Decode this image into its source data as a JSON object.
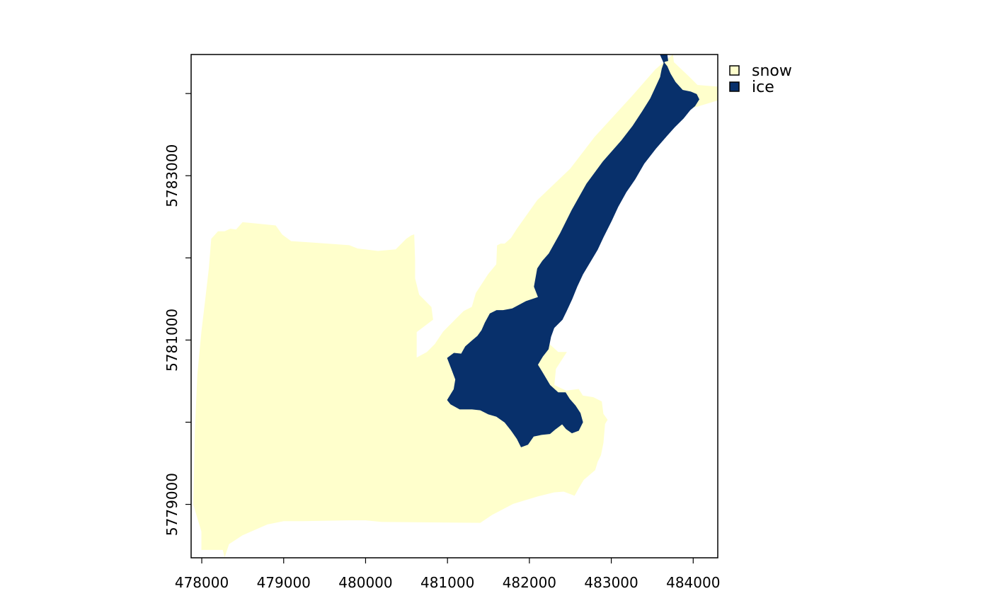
{
  "chart_data": {
    "type": "raster_map",
    "title": "",
    "xlabel": "",
    "ylabel": "",
    "x_ticks": [
      {
        "value": 478000,
        "label": "478000"
      },
      {
        "value": 479000,
        "label": "479000"
      },
      {
        "value": 480000,
        "label": "480000"
      },
      {
        "value": 481000,
        "label": "481000"
      },
      {
        "value": 482000,
        "label": "482000"
      },
      {
        "value": 483000,
        "label": "483000"
      },
      {
        "value": 484000,
        "label": "484000"
      }
    ],
    "y_ticks": [
      {
        "value": 5779000,
        "label": "5779000"
      },
      {
        "value": 5780000,
        "label": ""
      },
      {
        "value": 5781000,
        "label": "5781000"
      },
      {
        "value": 5782000,
        "label": ""
      },
      {
        "value": 5783000,
        "label": "5783000"
      },
      {
        "value": 5784000,
        "label": ""
      }
    ],
    "xlim": [
      477870,
      484300
    ],
    "ylim": [
      5778350,
      5784475
    ],
    "legend": {
      "position": "top-right",
      "entries": [
        {
          "label": "snow",
          "color": "#ffffcc"
        },
        {
          "label": "ice",
          "color": "#08306b"
        }
      ]
    },
    "classes": [
      {
        "name": "snow",
        "color": "#ffffcc",
        "polygon": [
          [
            478000,
            5778670
          ],
          [
            478000,
            5778450
          ],
          [
            478260,
            5778450
          ],
          [
            478280,
            5778370
          ],
          [
            478330,
            5778520
          ],
          [
            478500,
            5778630
          ],
          [
            478800,
            5778760
          ],
          [
            479000,
            5778800
          ],
          [
            479230,
            5778800
          ],
          [
            479800,
            5778810
          ],
          [
            480000,
            5778810
          ],
          [
            480200,
            5778790
          ],
          [
            481400,
            5778780
          ],
          [
            481550,
            5778880
          ],
          [
            481800,
            5779010
          ],
          [
            482100,
            5779100
          ],
          [
            482300,
            5779150
          ],
          [
            482420,
            5779160
          ],
          [
            482550,
            5779110
          ],
          [
            482600,
            5779200
          ],
          [
            482660,
            5779300
          ],
          [
            482800,
            5779420
          ],
          [
            482830,
            5779520
          ],
          [
            482870,
            5779600
          ],
          [
            482900,
            5779750
          ],
          [
            482920,
            5779980
          ],
          [
            482950,
            5780030
          ],
          [
            482900,
            5780100
          ],
          [
            482880,
            5780250
          ],
          [
            482780,
            5780300
          ],
          [
            482650,
            5780320
          ],
          [
            482600,
            5780400
          ],
          [
            482450,
            5780380
          ],
          [
            482300,
            5780450
          ],
          [
            482320,
            5780650
          ],
          [
            482450,
            5780850
          ],
          [
            482350,
            5780850
          ],
          [
            482130,
            5781050
          ],
          [
            482230,
            5781250
          ],
          [
            482300,
            5781350
          ],
          [
            482430,
            5781550
          ],
          [
            482590,
            5781800
          ],
          [
            482650,
            5781910
          ],
          [
            482700,
            5782060
          ],
          [
            482870,
            5782440
          ],
          [
            483000,
            5782720
          ],
          [
            483130,
            5782980
          ],
          [
            483300,
            5783270
          ],
          [
            483520,
            5783600
          ],
          [
            483800,
            5783700
          ],
          [
            484000,
            5783830
          ],
          [
            484300,
            5783920
          ],
          [
            484300,
            5784080
          ],
          [
            484050,
            5784100
          ],
          [
            483950,
            5784200
          ],
          [
            483760,
            5784380
          ],
          [
            483750,
            5784470
          ],
          [
            483540,
            5784290
          ],
          [
            483250,
            5783960
          ],
          [
            482800,
            5783470
          ],
          [
            482500,
            5783080
          ],
          [
            482100,
            5782700
          ],
          [
            481850,
            5782350
          ],
          [
            481780,
            5782240
          ],
          [
            481700,
            5782170
          ],
          [
            481650,
            5782170
          ],
          [
            481610,
            5782150
          ],
          [
            481600,
            5781920
          ],
          [
            481500,
            5781800
          ],
          [
            481350,
            5781570
          ],
          [
            481300,
            5781400
          ],
          [
            481200,
            5781350
          ],
          [
            481100,
            5781250
          ],
          [
            480950,
            5781100
          ],
          [
            480850,
            5780950
          ],
          [
            480750,
            5780850
          ],
          [
            480620,
            5780780
          ],
          [
            480620,
            5781100
          ],
          [
            480820,
            5781250
          ],
          [
            480800,
            5781400
          ],
          [
            480650,
            5781550
          ],
          [
            480600,
            5781750
          ],
          [
            480600,
            5781980
          ],
          [
            480590,
            5782280
          ],
          [
            480560,
            5782270
          ],
          [
            480500,
            5782230
          ],
          [
            480370,
            5782100
          ],
          [
            480150,
            5782080
          ],
          [
            479900,
            5782110
          ],
          [
            479800,
            5782150
          ],
          [
            479380,
            5782180
          ],
          [
            479090,
            5782200
          ],
          [
            478980,
            5782280
          ],
          [
            478900,
            5782390
          ],
          [
            478600,
            5782420
          ],
          [
            478500,
            5782430
          ],
          [
            478420,
            5782340
          ],
          [
            478350,
            5782350
          ],
          [
            478280,
            5782320
          ],
          [
            478200,
            5782320
          ],
          [
            478120,
            5782230
          ],
          [
            478090,
            5781870
          ],
          [
            478050,
            5781520
          ],
          [
            478000,
            5781100
          ],
          [
            477950,
            5780580
          ],
          [
            477920,
            5779900
          ],
          [
            477910,
            5779400
          ],
          [
            477900,
            5779000
          ]
        ]
      },
      {
        "name": "ice",
        "color": "#08306b",
        "polygon": [
          [
            483600,
            5784470
          ],
          [
            483680,
            5784470
          ],
          [
            483690,
            5784400
          ],
          [
            483650,
            5784390
          ],
          [
            483620,
            5784300
          ],
          [
            483600,
            5784200
          ],
          [
            483540,
            5784070
          ],
          [
            483480,
            5783940
          ],
          [
            483380,
            5783780
          ],
          [
            483260,
            5783600
          ],
          [
            483120,
            5783420
          ],
          [
            482900,
            5783170
          ],
          [
            482700,
            5782900
          ],
          [
            482520,
            5782580
          ],
          [
            482380,
            5782300
          ],
          [
            482240,
            5782050
          ],
          [
            482160,
            5781960
          ],
          [
            482100,
            5781870
          ],
          [
            482060,
            5781650
          ],
          [
            482110,
            5781520
          ],
          [
            481960,
            5781470
          ],
          [
            481790,
            5781380
          ],
          [
            481680,
            5781360
          ],
          [
            481600,
            5781360
          ],
          [
            481520,
            5781320
          ],
          [
            481460,
            5781210
          ],
          [
            481420,
            5781120
          ],
          [
            481370,
            5781050
          ],
          [
            481300,
            5780990
          ],
          [
            481220,
            5780920
          ],
          [
            481170,
            5780830
          ],
          [
            481080,
            5780840
          ],
          [
            481000,
            5780780
          ],
          [
            481050,
            5780650
          ],
          [
            481100,
            5780520
          ],
          [
            481080,
            5780400
          ],
          [
            481000,
            5780270
          ],
          [
            481040,
            5780220
          ],
          [
            481150,
            5780160
          ],
          [
            481300,
            5780160
          ],
          [
            481400,
            5780150
          ],
          [
            481500,
            5780100
          ],
          [
            481600,
            5780070
          ],
          [
            481700,
            5780000
          ],
          [
            481780,
            5779900
          ],
          [
            481850,
            5779800
          ],
          [
            481900,
            5779700
          ],
          [
            481980,
            5779730
          ],
          [
            482050,
            5779830
          ],
          [
            482150,
            5779850
          ],
          [
            482250,
            5779860
          ],
          [
            482320,
            5779920
          ],
          [
            482400,
            5779980
          ],
          [
            482450,
            5779920
          ],
          [
            482520,
            5779870
          ],
          [
            482600,
            5779900
          ],
          [
            482650,
            5780000
          ],
          [
            482620,
            5780110
          ],
          [
            482560,
            5780200
          ],
          [
            482490,
            5780280
          ],
          [
            482440,
            5780360
          ],
          [
            482350,
            5780360
          ],
          [
            482250,
            5780450
          ],
          [
            482160,
            5780600
          ],
          [
            482100,
            5780700
          ],
          [
            482160,
            5780800
          ],
          [
            482230,
            5780890
          ],
          [
            482260,
            5781040
          ],
          [
            482300,
            5781150
          ],
          [
            482400,
            5781250
          ],
          [
            482450,
            5781350
          ],
          [
            482520,
            5781500
          ],
          [
            482580,
            5781650
          ],
          [
            482650,
            5781800
          ],
          [
            482740,
            5781950
          ],
          [
            482830,
            5782100
          ],
          [
            482900,
            5782250
          ],
          [
            483000,
            5782450
          ],
          [
            483080,
            5782620
          ],
          [
            483180,
            5782800
          ],
          [
            483290,
            5782960
          ],
          [
            483400,
            5783150
          ],
          [
            483540,
            5783330
          ],
          [
            483680,
            5783490
          ],
          [
            483770,
            5783590
          ],
          [
            483880,
            5783700
          ],
          [
            483960,
            5783800
          ],
          [
            484020,
            5783850
          ],
          [
            484070,
            5783930
          ],
          [
            484040,
            5783990
          ],
          [
            483970,
            5784020
          ],
          [
            483870,
            5784040
          ],
          [
            483780,
            5784140
          ],
          [
            483720,
            5784240
          ],
          [
            483680,
            5784330
          ],
          [
            483640,
            5784380
          ]
        ]
      }
    ]
  }
}
